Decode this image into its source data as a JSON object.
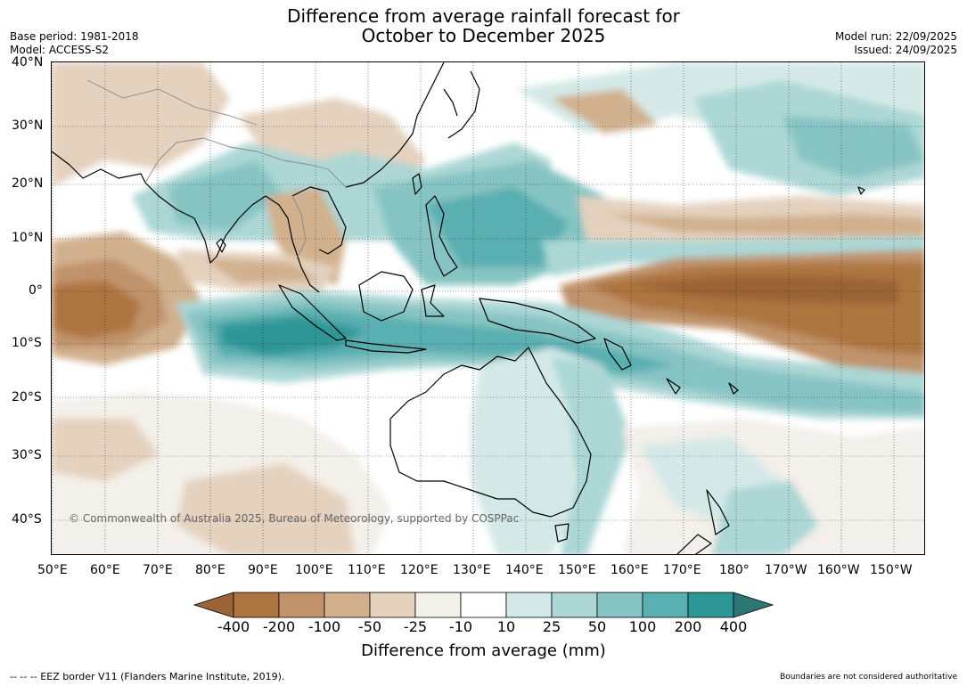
{
  "title_line1": "Difference from average rainfall forecast for",
  "title_line2": "October to December 2025",
  "base_period": "Base period: 1981-2018",
  "model": "Model: ACCESS-S2",
  "model_run": "Model run: 22/09/2025",
  "issued": "Issued: 24/09/2025",
  "lat_labels": [
    "40°N",
    "30°N",
    "20°N",
    "10°N",
    "0°",
    "10°S",
    "20°S",
    "30°S",
    "40°S"
  ],
  "lon_labels": [
    "50°E",
    "60°E",
    "70°E",
    "80°E",
    "90°E",
    "100°E",
    "110°E",
    "120°E",
    "130°E",
    "140°E",
    "150°E",
    "160°E",
    "170°E",
    "180°",
    "170°W",
    "160°W",
    "150°W"
  ],
  "copyright": "© Commonwealth of Australia 2025, Bureau of Meteorology, supported by COSPPac",
  "colorbar": {
    "labels": [
      "-400",
      "-200",
      "-100",
      "-50",
      "-25",
      "-10",
      "10",
      "25",
      "50",
      "100",
      "200",
      "400"
    ],
    "colors": [
      "#9a6436",
      "#ad7540",
      "#c0936a",
      "#d1b08e",
      "#e4d1be",
      "#f3efe9",
      "#ffffff",
      "#d4e9e7",
      "#acd7d5",
      "#86c4c3",
      "#5aafb0",
      "#2e9796",
      "#2c7775"
    ],
    "title": "Difference from average (mm)"
  },
  "footer_left": "--  --  -- EEZ border V11 (Flanders Marine Institute, 2019).",
  "footer_right": "Boundaries are not considered authoritative"
}
